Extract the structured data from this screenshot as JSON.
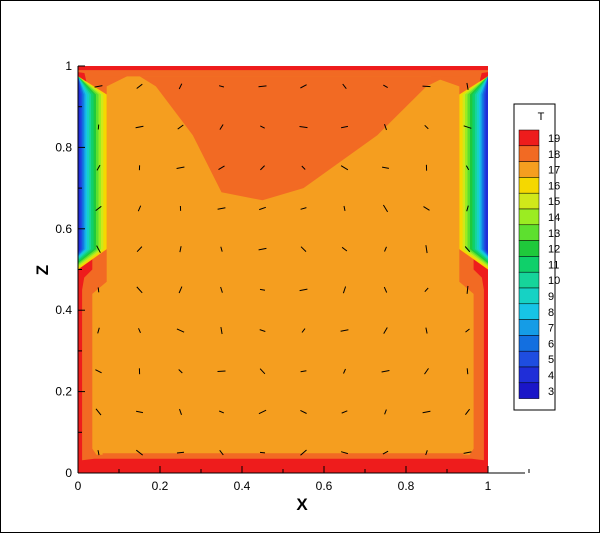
{
  "chart_data": {
    "type": "heatmap",
    "subtype": "contour with velocity vectors",
    "title": "",
    "xlabel": "X",
    "ylabel": "Z",
    "xlim": [
      0,
      1.1
    ],
    "ylim": [
      0,
      1
    ],
    "x_ticks": [
      0,
      0.2,
      0.4,
      0.6,
      0.8,
      1
    ],
    "x_tick_labels": [
      "0",
      "0.2",
      "0.4",
      "0.6",
      "0.8",
      "1"
    ],
    "y_ticks": [
      0,
      0.2,
      0.4,
      0.6,
      0.8,
      1
    ],
    "y_tick_labels": [
      "0",
      "0.2",
      "0.4",
      "0.6",
      "0.8",
      "1"
    ],
    "legend": {
      "title": "T",
      "placement": "right",
      "levels": [
        19,
        18,
        17,
        16,
        15,
        14,
        13,
        12,
        11,
        10,
        9,
        8,
        7,
        6,
        5,
        4,
        3
      ],
      "colors": [
        "#ee1c1c",
        "#f26a23",
        "#f59e1f",
        "#f5d800",
        "#d0e81a",
        "#9bec22",
        "#5de02f",
        "#1fc93b",
        "#0fd06a",
        "#16d49a",
        "#16d2c4",
        "#17c4e6",
        "#159ce6",
        "#136fe0",
        "#1e4de0",
        "#1f2ed8",
        "#1a16c8"
      ]
    },
    "regions": {
      "interior_T": 17,
      "top_wall_T": 19,
      "top_plume_T": 18,
      "side_lower_band_T": [
        18,
        19
      ],
      "upper_side_cold_T": [
        3,
        16
      ]
    },
    "top_plume_boundary": [
      [
        0.19,
        0.95
      ],
      [
        0.28,
        0.83
      ],
      [
        0.35,
        0.69
      ],
      [
        0.45,
        0.67
      ],
      [
        0.55,
        0.7
      ],
      [
        0.73,
        0.83
      ],
      [
        0.85,
        0.95
      ]
    ],
    "vector_grid": {
      "x": [
        0.05,
        0.15,
        0.25,
        0.35,
        0.45,
        0.55,
        0.65,
        0.75,
        0.85,
        0.95
      ],
      "z": [
        0.05,
        0.15,
        0.25,
        0.35,
        0.45,
        0.55,
        0.65,
        0.75,
        0.85,
        0.95
      ]
    }
  }
}
